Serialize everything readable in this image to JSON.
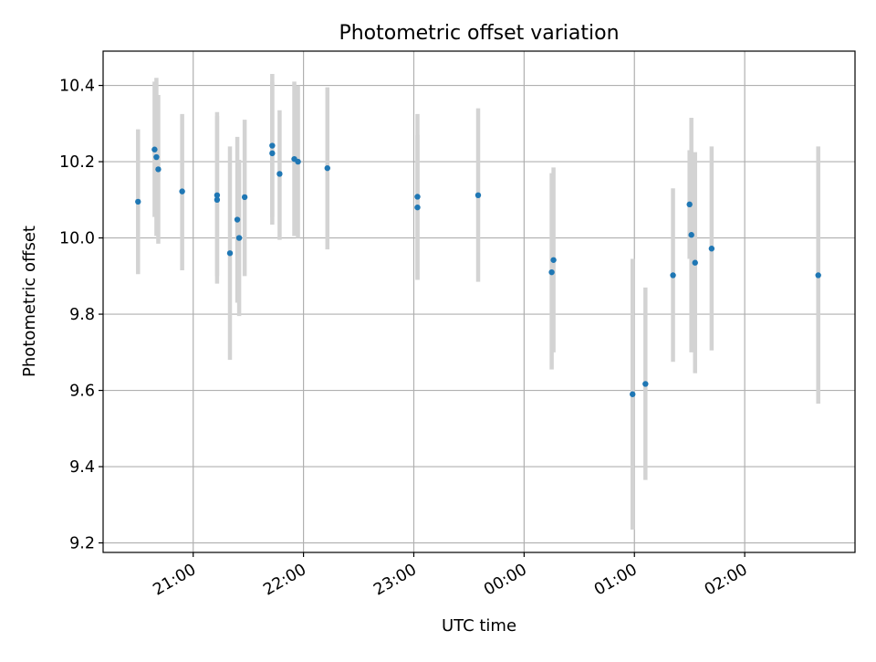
{
  "chart_data": {
    "type": "scatter",
    "title": "Photometric offset variation",
    "xlabel": "UTC time",
    "ylabel": "Photometric offset",
    "x_axis": {
      "kind": "time",
      "range": [
        "20:11",
        "03:00"
      ],
      "ticks": [
        {
          "value": "21:00",
          "label": "21:00"
        },
        {
          "value": "22:00",
          "label": "22:00"
        },
        {
          "value": "23:00",
          "label": "23:00"
        },
        {
          "value": "00:00",
          "label": "00:00"
        },
        {
          "value": "01:00",
          "label": "01:00"
        },
        {
          "value": "02:00",
          "label": "02:00"
        }
      ]
    },
    "y_axis": {
      "range": [
        9.175,
        10.49
      ],
      "ticks": [
        {
          "value": 9.2,
          "label": "9.2"
        },
        {
          "value": 9.4,
          "label": "9.4"
        },
        {
          "value": 9.6,
          "label": "9.6"
        },
        {
          "value": 9.8,
          "label": "9.8"
        },
        {
          "value": 10.0,
          "label": "10.0"
        },
        {
          "value": 10.2,
          "label": "10.2"
        },
        {
          "value": 10.4,
          "label": "10.4"
        }
      ]
    },
    "grid": true,
    "colors": {
      "marker": "#1f77b4",
      "errorbar": "#d3d3d3",
      "grid": "#b0b0b0"
    },
    "points": [
      {
        "time": "20:30",
        "y": 10.095,
        "lo": 9.905,
        "hi": 10.285
      },
      {
        "time": "20:39",
        "y": 10.232,
        "lo": 10.055,
        "hi": 10.41
      },
      {
        "time": "20:40",
        "y": 10.212,
        "lo": 10.005,
        "hi": 10.42
      },
      {
        "time": "20:41",
        "y": 10.18,
        "lo": 9.985,
        "hi": 10.375
      },
      {
        "time": "20:54",
        "y": 10.122,
        "lo": 9.915,
        "hi": 10.325
      },
      {
        "time": "21:13",
        "y": 10.1,
        "lo": 9.88,
        "hi": 10.32
      },
      {
        "time": "21:13",
        "y": 10.112,
        "lo": 9.9,
        "hi": 10.33
      },
      {
        "time": "21:20",
        "y": 9.96,
        "lo": 9.68,
        "hi": 10.24
      },
      {
        "time": "21:24",
        "y": 10.048,
        "lo": 9.83,
        "hi": 10.265
      },
      {
        "time": "21:25",
        "y": 10.0,
        "lo": 9.795,
        "hi": 10.205
      },
      {
        "time": "21:28",
        "y": 10.107,
        "lo": 9.9,
        "hi": 10.31
      },
      {
        "time": "21:43",
        "y": 10.242,
        "lo": 10.055,
        "hi": 10.43
      },
      {
        "time": "21:43",
        "y": 10.222,
        "lo": 10.035,
        "hi": 10.41
      },
      {
        "time": "21:47",
        "y": 10.168,
        "lo": 9.995,
        "hi": 10.335
      },
      {
        "time": "21:55",
        "y": 10.207,
        "lo": 10.005,
        "hi": 10.41
      },
      {
        "time": "21:57",
        "y": 10.2,
        "lo": 10.0,
        "hi": 10.4
      },
      {
        "time": "22:13",
        "y": 10.183,
        "lo": 9.97,
        "hi": 10.395
      },
      {
        "time": "23:02",
        "y": 10.08,
        "lo": 9.89,
        "hi": 10.27
      },
      {
        "time": "23:02",
        "y": 10.108,
        "lo": 9.89,
        "hi": 10.325
      },
      {
        "time": "23:35",
        "y": 10.112,
        "lo": 9.885,
        "hi": 10.34
      },
      {
        "time": "00:15",
        "y": 9.91,
        "lo": 9.655,
        "hi": 10.17
      },
      {
        "time": "00:16",
        "y": 9.942,
        "lo": 9.7,
        "hi": 10.185
      },
      {
        "time": "00:59",
        "y": 9.59,
        "lo": 9.235,
        "hi": 9.945
      },
      {
        "time": "01:06",
        "y": 9.617,
        "lo": 9.365,
        "hi": 9.87
      },
      {
        "time": "01:21",
        "y": 9.902,
        "lo": 9.675,
        "hi": 10.13
      },
      {
        "time": "01:30",
        "y": 10.088,
        "lo": 9.945,
        "hi": 10.23
      },
      {
        "time": "01:31",
        "y": 10.008,
        "lo": 9.7,
        "hi": 10.315
      },
      {
        "time": "01:33",
        "y": 9.935,
        "lo": 9.645,
        "hi": 10.225
      },
      {
        "time": "01:42",
        "y": 9.972,
        "lo": 9.705,
        "hi": 10.24
      },
      {
        "time": "02:40",
        "y": 9.902,
        "lo": 9.565,
        "hi": 10.24
      }
    ]
  }
}
